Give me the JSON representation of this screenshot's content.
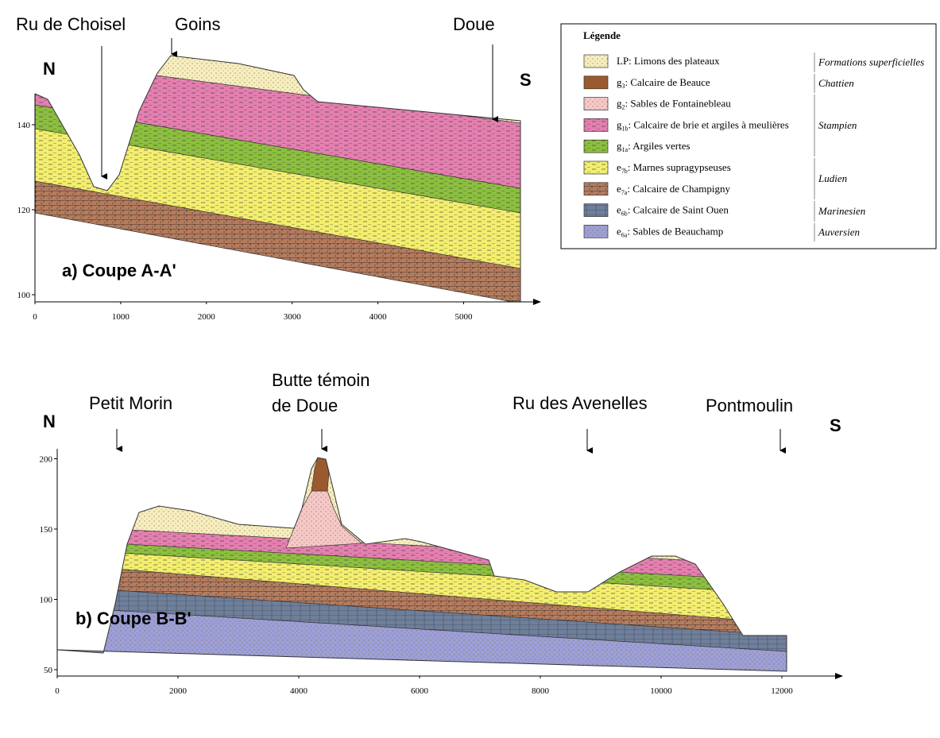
{
  "section_a": {
    "places": [
      [
        "Ru de Choisel"
      ],
      [
        "Goins"
      ],
      [
        "Doue"
      ]
    ],
    "north": "N",
    "south": "S",
    "title": "a) Coupe A-A'",
    "xticks": [
      0,
      1000,
      2000,
      3000,
      4000,
      5000
    ],
    "yticks": [
      100,
      120,
      140
    ]
  },
  "section_b": {
    "places": [
      [
        "Petit Morin"
      ],
      [
        "Butte témoin",
        "de Doue"
      ],
      [
        "Ru des Avenelles"
      ],
      [
        "Pontmoulin"
      ]
    ],
    "north": "N",
    "south": "S",
    "title": "b) Coupe B-B'",
    "xticks": [
      0,
      2000,
      4000,
      6000,
      8000,
      10000,
      12000
    ],
    "yticks": [
      50,
      100,
      150,
      200
    ]
  },
  "legend": {
    "title": "Légende",
    "items": [
      {
        "code": "LP",
        "label": ": Limons des plateaux"
      },
      {
        "code": "g",
        "sub": "3",
        "label": ": Calcaire de Beauce"
      },
      {
        "code": "g",
        "sub": "2",
        "label": ": Sables de Fontainebleau"
      },
      {
        "code": "g",
        "sub": "1b",
        "label": ": Calcaire de brie et argiles à meulières"
      },
      {
        "code": "g",
        "sub": "1a",
        "label": ": Argiles vertes"
      },
      {
        "code": "e",
        "sub": "7b",
        "label": ": Marnes supragypseuses"
      },
      {
        "code": "e",
        "sub": "7a",
        "label": ": Calcaire de Champigny"
      },
      {
        "code": "e",
        "sub": "6b",
        "label": ": Calcaire de Saint Ouen"
      },
      {
        "code": "e",
        "sub": "6a",
        "label": ": Sables de Beauchamp"
      }
    ],
    "stages": [
      "Formations superficielles",
      "Chattien",
      "Stampien",
      "Ludien",
      "Marinesien",
      "Auversien"
    ]
  }
}
